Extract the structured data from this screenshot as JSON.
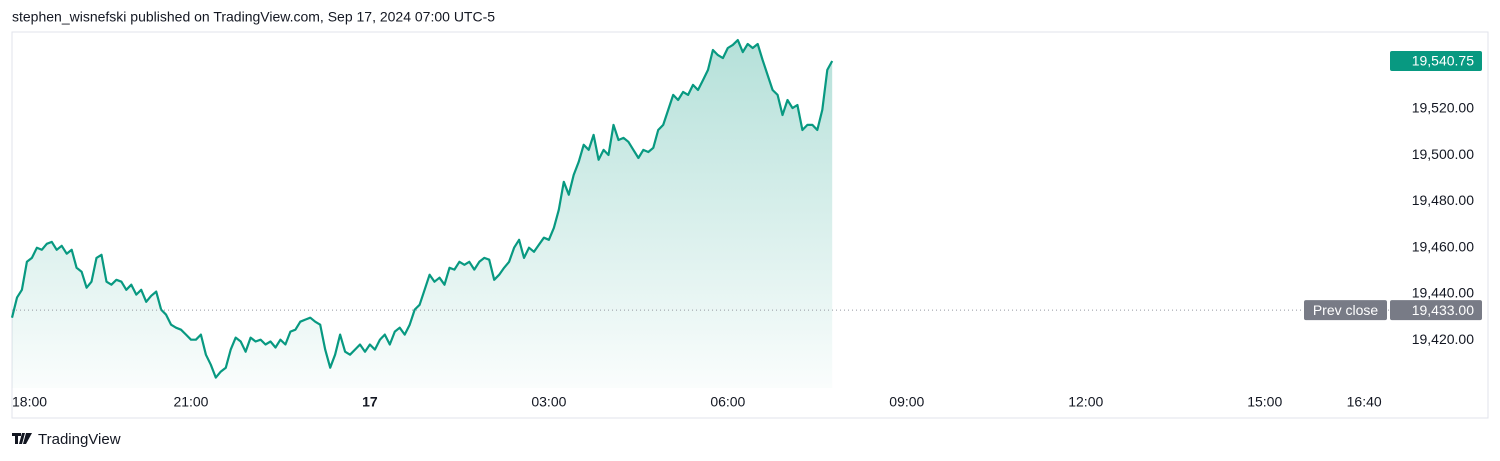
{
  "header": "stephen_wisnefski published on TradingView.com, Sep 17, 2024 07:00 UTC-5",
  "brand": "TradingView",
  "chart_data": {
    "type": "area",
    "color": "#089981",
    "x": [
      0,
      5,
      10,
      15,
      20,
      25,
      30,
      35,
      40,
      45,
      50,
      55,
      60,
      65,
      70,
      75,
      80,
      85,
      90,
      95,
      100,
      105,
      110,
      115,
      120,
      125,
      130,
      135,
      140,
      145,
      150,
      155,
      160,
      165,
      170,
      175,
      180,
      185,
      190,
      195,
      200,
      205,
      210,
      215,
      220,
      225,
      230,
      235,
      240,
      245,
      250,
      255,
      260,
      265,
      270,
      275,
      280,
      285,
      290,
      295,
      300,
      305,
      310,
      315,
      320,
      325,
      330,
      335,
      340,
      345,
      350,
      355,
      360,
      365,
      370,
      375,
      380,
      385,
      390,
      395,
      400,
      405,
      410,
      415,
      420,
      425,
      430,
      435,
      440,
      445,
      450,
      455,
      460,
      465,
      470,
      475,
      480,
      485,
      490,
      495,
      500,
      505,
      510,
      515,
      520,
      525,
      530,
      535,
      540,
      545,
      550,
      555,
      560,
      565,
      570,
      575,
      580,
      585,
      590,
      595,
      600,
      605,
      610,
      615,
      620,
      625,
      630,
      635,
      640,
      645,
      650,
      655,
      660,
      665,
      670,
      675,
      680,
      685,
      690,
      695,
      700,
      705,
      710,
      715,
      720,
      725,
      730,
      735,
      740,
      745,
      750,
      755,
      760,
      765,
      770,
      775,
      780,
      785,
      790,
      795,
      800,
      805,
      810,
      815,
      820,
      825
    ],
    "values": [
      19429.7,
      19438.4,
      19441.8,
      19453.9,
      19455.6,
      19460.0,
      19459.1,
      19461.7,
      19462.5,
      19459.1,
      19460.8,
      19457.4,
      19459.1,
      19451.3,
      19449.6,
      19442.7,
      19445.3,
      19455.6,
      19456.9,
      19445.3,
      19444.0,
      19446.1,
      19445.3,
      19441.8,
      19444.0,
      19439.7,
      19441.8,
      19436.6,
      19439.2,
      19441.0,
      19433.2,
      19431.0,
      19426.7,
      19425.4,
      19424.5,
      19422.4,
      19420.2,
      19420.2,
      19422.4,
      19413.7,
      19409.4,
      19403.8,
      19406.4,
      19408.1,
      19415.9,
      19421.1,
      19419.4,
      19415.0,
      19421.1,
      19419.4,
      19420.2,
      19418.1,
      19419.4,
      19416.8,
      19420.2,
      19418.1,
      19423.7,
      19424.5,
      19428.0,
      19428.9,
      19429.7,
      19428.0,
      19426.7,
      19415.9,
      19408.1,
      19413.7,
      19422.4,
      19415.0,
      19413.7,
      19415.9,
      19418.1,
      19415.0,
      19418.1,
      19415.9,
      19420.2,
      19422.4,
      19418.1,
      19423.7,
      19425.4,
      19422.4,
      19426.7,
      19433.2,
      19435.3,
      19441.8,
      19448.3,
      19445.3,
      19447.0,
      19444.0,
      19451.3,
      19450.5,
      19453.9,
      19452.6,
      19453.9,
      19450.5,
      19453.9,
      19455.6,
      19454.8,
      19446.1,
      19448.3,
      19451.3,
      19453.9,
      19460.0,
      19463.4,
      19455.6,
      19460.0,
      19458.2,
      19461.3,
      19464.3,
      19463.4,
      19468.6,
      19476.4,
      19488.5,
      19482.9,
      19491.5,
      19497.1,
      19504.5,
      19502.3,
      19508.8,
      19498.0,
      19502.3,
      19500.1,
      19513.1,
      19506.6,
      19507.5,
      19505.8,
      19502.3,
      19498.8,
      19502.3,
      19501.4,
      19503.2,
      19510.9,
      19513.1,
      19519.6,
      19526.1,
      19523.9,
      19527.4,
      19526.1,
      19530.4,
      19528.2,
      19532.5,
      19536.9,
      19545.5,
      19543.3,
      19542.0,
      19546.4,
      19547.7,
      19549.8,
      19544.6,
      19548.1,
      19546.4,
      19548.1,
      19541.2,
      19534.7,
      19528.2,
      19526.1,
      19517.4,
      19523.9,
      19520.4,
      19521.7,
      19510.9,
      19513.1,
      19513.1,
      19510.9,
      19519.6,
      19536.9,
      19540.75
    ],
    "last_price_label": "19,540.75",
    "prev_close": {
      "label": "Prev close",
      "value": 19433,
      "value_label": "19,433.00"
    },
    "xlim": [
      0,
      1386
    ],
    "ylim": [
      19399.3,
      19553.3
    ],
    "xticks": [
      {
        "value": 0,
        "label": "18:00"
      },
      {
        "value": 180,
        "label": "21:00"
      },
      {
        "value": 360,
        "label": "17"
      },
      {
        "value": 540,
        "label": "03:00"
      },
      {
        "value": 720,
        "label": "06:00"
      },
      {
        "value": 900,
        "label": "09:00"
      },
      {
        "value": 1080,
        "label": "12:00"
      },
      {
        "value": 1260,
        "label": "15:00"
      },
      {
        "value": 1360,
        "label": "16:40"
      }
    ],
    "yticks": [
      {
        "value": 19420,
        "label": "19,420.00"
      },
      {
        "value": 19440,
        "label": "19,440.00"
      },
      {
        "value": 19460,
        "label": "19,460.00"
      },
      {
        "value": 19480,
        "label": "19,480.00"
      },
      {
        "value": 19500,
        "label": "19,500.00"
      },
      {
        "value": 19520,
        "label": "19,520.00"
      }
    ]
  }
}
